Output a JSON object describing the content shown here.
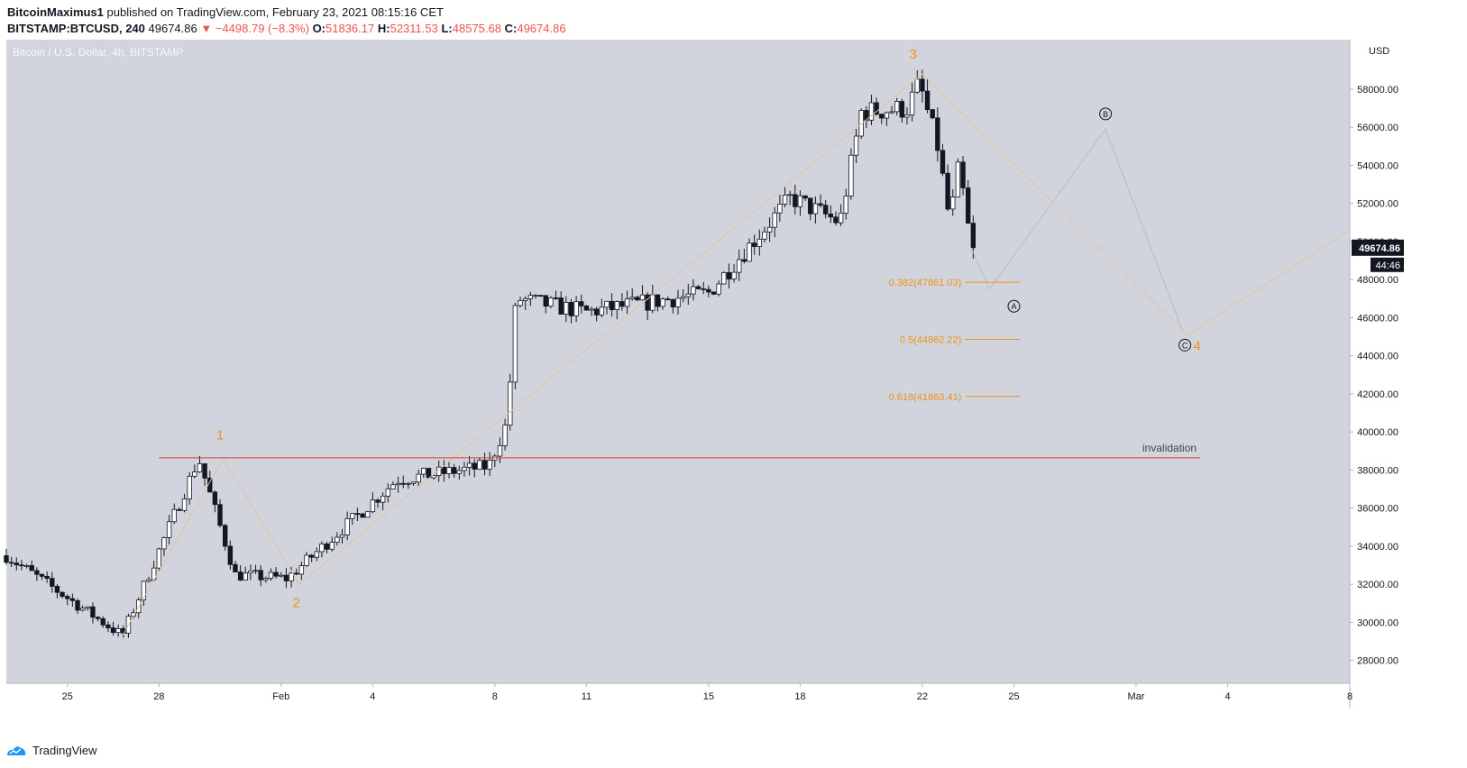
{
  "header": {
    "author": "BitcoinMaximus1",
    "published_text": "published on TradingView.com, February 23, 2021 08:15:16 CET",
    "symbol": "BITSTAMP:BTCUSD, 240",
    "last": "49674.86",
    "change": "▼ −4498.79 (−8.3%)",
    "o_label": "O:",
    "o_value": "51836.17",
    "h_label": "H:",
    "h_value": "52311.53",
    "l_label": "L:",
    "l_value": "48575.68",
    "c_label": "C:",
    "c_value": "49674.86"
  },
  "chart_data": {
    "type": "candlestick",
    "title": "Bitcoin / U.S. Dollar, 4h, BITSTAMP",
    "currency": "USD",
    "x_ticks": [
      {
        "label": "25",
        "day": -4
      },
      {
        "label": "28",
        "day": -1
      },
      {
        "label": "Feb",
        "day": 3
      },
      {
        "label": "4",
        "day": 6
      },
      {
        "label": "8",
        "day": 10
      },
      {
        "label": "11",
        "day": 13
      },
      {
        "label": "15",
        "day": 17
      },
      {
        "label": "18",
        "day": 20
      },
      {
        "label": "22",
        "day": 24
      },
      {
        "label": "25",
        "day": 27
      },
      {
        "label": "Mar",
        "day": 31
      },
      {
        "label": "4",
        "day": 34
      },
      {
        "label": "8",
        "day": 38
      }
    ],
    "y_ticks": [
      28000,
      30000,
      32000,
      34000,
      36000,
      38000,
      40000,
      42000,
      44000,
      46000,
      48000,
      50000,
      52000,
      54000,
      56000,
      58000
    ],
    "y_top_partial": "6\u0000 \u0000",
    "ylim": [
      26800,
      60600
    ],
    "xlim": [
      -6.0,
      38.0
    ],
    "price_label": "49674.86",
    "countdown_label": "44:46",
    "key_points": [
      {
        "day": -6.0,
        "price": 33500
      },
      {
        "day": -2.2,
        "price": 29300
      },
      {
        "day": 0.3,
        "price": 38600
      },
      {
        "day": 1.5,
        "price": 32500
      },
      {
        "day": 3.2,
        "price": 32300
      },
      {
        "day": 6.8,
        "price": 37500
      },
      {
        "day": 9.8,
        "price": 38200
      },
      {
        "day": 10.4,
        "price": 40500
      },
      {
        "day": 10.7,
        "price": 47000
      },
      {
        "day": 13.0,
        "price": 46300
      },
      {
        "day": 17.0,
        "price": 47300
      },
      {
        "day": 19.7,
        "price": 52300
      },
      {
        "day": 21.3,
        "price": 51000
      },
      {
        "day": 22.0,
        "price": 56800
      },
      {
        "day": 23.5,
        "price": 57000
      },
      {
        "day": 23.9,
        "price": 58300
      },
      {
        "day": 24.5,
        "price": 55000
      },
      {
        "day": 24.9,
        "price": 51000
      },
      {
        "day": 25.2,
        "price": 54000
      },
      {
        "day": 25.6,
        "price": 49674.86
      }
    ],
    "wave_lines": [
      {
        "name": "impulse",
        "color": "#e3c49d",
        "points": [
          {
            "day": -2.2,
            "price": 29300
          },
          {
            "day": 1.1,
            "price": 38600
          },
          {
            "day": 3.6,
            "price": 32000
          },
          {
            "day": 24.0,
            "price": 58800
          },
          {
            "day": 32.7,
            "price": 45100
          },
          {
            "day": 38.0,
            "price": 50600
          }
        ]
      },
      {
        "name": "correction",
        "color": "#b8bcc6",
        "points": [
          {
            "day": 25.6,
            "price": 49674.86
          },
          {
            "day": 26.2,
            "price": 47500
          },
          {
            "day": 30.0,
            "price": 55900
          },
          {
            "day": 32.5,
            "price": 45400
          }
        ]
      }
    ],
    "wave_labels": [
      {
        "text": "1",
        "day": 1.0,
        "price": 39600,
        "color": "#f0921b"
      },
      {
        "text": "2",
        "day": 3.5,
        "price": 30800,
        "color": "#f0921b"
      },
      {
        "text": "3",
        "day": 23.7,
        "price": 59600,
        "color": "#f0921b"
      },
      {
        "text": "4",
        "day": 33.0,
        "price": 44300,
        "color": "#f0921b"
      }
    ],
    "circle_labels": [
      {
        "text": "A",
        "day": 27.0,
        "price": 46600
      },
      {
        "text": "B",
        "day": 30.0,
        "price": 56700
      },
      {
        "text": "C",
        "day": 32.6,
        "price": 44560
      }
    ],
    "fib_levels": [
      {
        "label": "0.382(47861.03)",
        "price": 47861.03
      },
      {
        "label": "0.5(44862.22)",
        "price": 44862.22
      },
      {
        "label": "0.618(41863.41)",
        "price": 41863.41
      }
    ],
    "fib_x_range": [
      25.4,
      27.2
    ],
    "invalidation": {
      "label": "invalidation",
      "price": 38640,
      "x_range": [
        -1.0,
        33.1
      ]
    }
  },
  "footer": {
    "brand": "TradingView"
  },
  "colors": {
    "plot_bg": "#d1d4dc",
    "orange": "#f0921b",
    "red": "#e53935",
    "axis_text": "#131722"
  }
}
